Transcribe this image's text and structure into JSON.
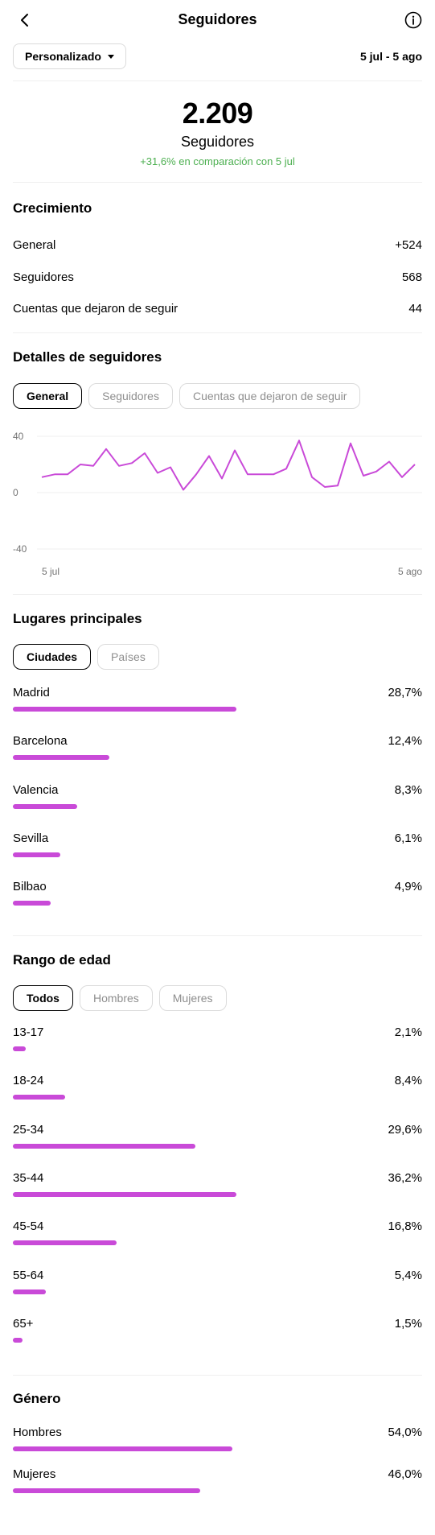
{
  "header": {
    "title": "Seguidores",
    "back_icon": "back-arrow-icon",
    "info_icon": "info-icon"
  },
  "range": {
    "dropdown_label": "Personalizado",
    "date_range": "5 jul - 5 ago"
  },
  "summary": {
    "total": "2.209",
    "label": "Seguidores",
    "compare": "+31,6% en comparación con 5 jul",
    "compare_color": "#4caf50"
  },
  "growth": {
    "title": "Crecimiento",
    "rows": [
      {
        "label": "General",
        "value": "+524"
      },
      {
        "label": "Seguidores",
        "value": "568"
      },
      {
        "label": "Cuentas que dejaron de seguir",
        "value": "44"
      }
    ]
  },
  "details": {
    "title": "Detalles de seguidores",
    "tabs": [
      "General",
      "Seguidores",
      "Cuentas que dejaron de seguir"
    ],
    "active_tab": "General"
  },
  "chart_data": {
    "type": "line",
    "x_start_label": "5 jul",
    "x_end_label": "5 ago",
    "y_ticks": [
      "40",
      "0",
      "-40"
    ],
    "ylim": [
      -40,
      40
    ],
    "color": "#c94ad8",
    "series": [
      {
        "values": [
          11,
          13,
          13,
          20,
          19,
          31,
          19,
          21,
          28,
          14,
          18,
          2,
          13,
          26,
          10,
          30,
          13,
          13,
          13,
          17,
          37,
          11,
          4,
          5,
          35,
          12,
          15,
          22,
          11,
          20
        ]
      }
    ]
  },
  "places": {
    "title": "Lugares principales",
    "tabs": [
      "Ciudades",
      "Países"
    ],
    "active_tab": "Ciudades",
    "items": [
      {
        "label": "Madrid",
        "pct": "28,7%",
        "value": 28.7
      },
      {
        "label": "Barcelona",
        "pct": "12,4%",
        "value": 12.4
      },
      {
        "label": "Valencia",
        "pct": "8,3%",
        "value": 8.3
      },
      {
        "label": "Sevilla",
        "pct": "6,1%",
        "value": 6.1
      },
      {
        "label": "Bilbao",
        "pct": "4,9%",
        "value": 4.9
      }
    ]
  },
  "age": {
    "title": "Rango de edad",
    "tabs": [
      "Todos",
      "Hombres",
      "Mujeres"
    ],
    "active_tab": "Todos",
    "items": [
      {
        "label": "13-17",
        "pct": "2,1%",
        "value": 2.1
      },
      {
        "label": "18-24",
        "pct": "8,4%",
        "value": 8.4
      },
      {
        "label": "25-34",
        "pct": "29,6%",
        "value": 29.6
      },
      {
        "label": "35-44",
        "pct": "36,2%",
        "value": 36.2
      },
      {
        "label": "45-54",
        "pct": "16,8%",
        "value": 16.8
      },
      {
        "label": "55-64",
        "pct": "5,4%",
        "value": 5.4
      },
      {
        "label": "65+",
        "pct": "1,5%",
        "value": 1.5
      }
    ]
  },
  "gender": {
    "title": "Género",
    "items": [
      {
        "label": "Hombres",
        "pct": "54,0%",
        "value": 54.0
      },
      {
        "label": "Mujeres",
        "pct": "46,0%",
        "value": 46.0
      }
    ]
  },
  "accent_color": "#c94ad8"
}
